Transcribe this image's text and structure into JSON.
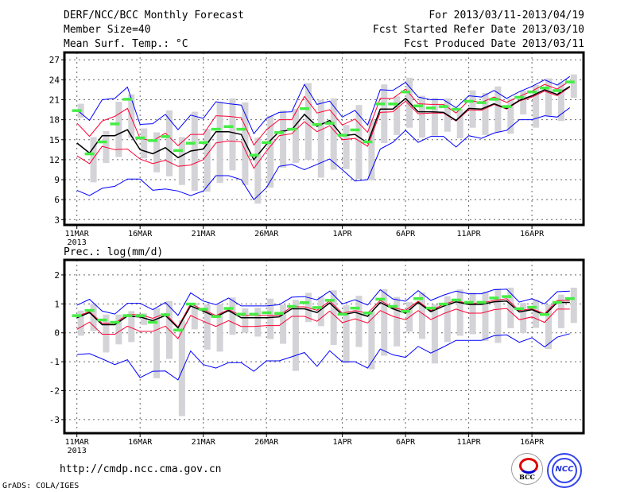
{
  "header": {
    "title": "DERF/NCC/BCC Monthly Forecast",
    "member_size": "Member Size=40",
    "variable": "Mean Surf. Temp.: °C",
    "period": "For 2013/03/11-2013/04/19",
    "started": "Fcst Started Refer Date 2013/03/10",
    "produced": "Fcst Produced Date 2013/03/11"
  },
  "footer": {
    "url": "http://cmdp.ncc.cma.gov.cn",
    "grads": "GrADS: COLA/IGES",
    "logo_bcc": "BCC",
    "logo_ncc": "NCC"
  },
  "colors": {
    "max_min": "#0000ff",
    "spread": "#ff0033",
    "mean": "#000000",
    "obs": "#44ee44",
    "range": "#d3d3d8"
  },
  "chart_data": [
    {
      "type": "line",
      "title": "Mean Surf. Temp.: °C",
      "ylim": [
        2.2,
        28.1
      ],
      "yticks": [
        3,
        6,
        9,
        12,
        15,
        18,
        21,
        24,
        27
      ],
      "grid": true,
      "xticks": [
        {
          "day": 0,
          "label": "11MAR",
          "sub": "2013"
        },
        {
          "day": 5,
          "label": "16MAR"
        },
        {
          "day": 10,
          "label": "21MAR"
        },
        {
          "day": 15,
          "label": "26MAR"
        },
        {
          "day": 21,
          "label": "1APR"
        },
        {
          "day": 26,
          "label": "6APR"
        },
        {
          "day": 31,
          "label": "11APR"
        },
        {
          "day": 36,
          "label": "16APR"
        }
      ],
      "series": [
        {
          "name": "range",
          "kind": "bar",
          "min": [
            18.3,
            8.6,
            11.5,
            12.4,
            15.3,
            12.2,
            10.1,
            9.5,
            8.2,
            7.3,
            7.2,
            8.5,
            10.4,
            8.2,
            5.4,
            7.8,
            10.8,
            11.5,
            12.0,
            9.3,
            10.5,
            10.6,
            9.1,
            8.9,
            14.5,
            15.7,
            16.8,
            15.3,
            15.6,
            16.2,
            15.2,
            16.8,
            15.7,
            16.1,
            15.9,
            18.8,
            16.8,
            18.6,
            17.8,
            21.3
          ],
          "max": [
            20.4,
            15.4,
            16.3,
            20.7,
            21.8,
            16.7,
            16.1,
            19.4,
            15.4,
            19.2,
            16.6,
            20.7,
            21.2,
            20.6,
            15.3,
            18.6,
            19.4,
            19.6,
            23.5,
            21.0,
            21.2,
            17.2,
            20.2,
            18.0,
            23.3,
            21.5,
            24.3,
            21.6,
            21.3,
            21.2,
            19.6,
            22.4,
            22.0,
            23.0,
            21.2,
            22.4,
            23.2,
            24.2,
            23.6,
            24.8
          ]
        },
        {
          "name": "upper-blue",
          "color": "#0000ff",
          "values": [
            19.5,
            17.9,
            21.0,
            21.2,
            22.9,
            17.3,
            17.4,
            18.8,
            16.5,
            18.7,
            18.2,
            20.7,
            20.4,
            20.2,
            15.9,
            18.2,
            19.1,
            19.2,
            23.3,
            20.3,
            20.8,
            18.4,
            19.4,
            17.2,
            22.5,
            22.4,
            23.6,
            21.4,
            21.0,
            21.0,
            19.8,
            21.6,
            21.4,
            22.4,
            21.2,
            22.2,
            23.0,
            24.0,
            23.2,
            24.5
          ]
        },
        {
          "name": "lower-blue",
          "color": "#0000ff",
          "values": [
            7.4,
            6.6,
            7.7,
            8.0,
            9.1,
            9.1,
            7.4,
            7.6,
            7.3,
            6.6,
            7.3,
            9.6,
            9.6,
            9.0,
            6.0,
            7.8,
            11.0,
            11.3,
            10.5,
            11.3,
            12.1,
            10.5,
            8.8,
            9.0,
            13.6,
            14.6,
            16.4,
            14.6,
            15.5,
            15.5,
            13.9,
            15.6,
            15.2,
            16.0,
            16.4,
            18.0,
            18.0,
            18.6,
            18.4,
            19.8
          ]
        },
        {
          "name": "upper-red",
          "color": "#ff0033",
          "values": [
            17.5,
            15.5,
            17.8,
            18.5,
            19.7,
            15.2,
            14.8,
            16.0,
            14.1,
            15.8,
            15.8,
            18.6,
            18.5,
            18.3,
            14.2,
            16.5,
            18.0,
            18.0,
            21.5,
            19.0,
            19.5,
            17.2,
            18.1,
            16.1,
            21.2,
            21.2,
            22.6,
            20.4,
            20.3,
            20.3,
            19.0,
            20.9,
            20.6,
            21.4,
            20.6,
            21.5,
            22.3,
            23.3,
            22.6,
            23.8
          ]
        },
        {
          "name": "lower-red",
          "color": "#ff0033",
          "values": [
            12.6,
            11.4,
            14.0,
            13.5,
            13.6,
            12.1,
            11.4,
            11.9,
            11.0,
            11.2,
            12.0,
            14.5,
            14.8,
            14.7,
            10.7,
            13.3,
            15.6,
            15.9,
            17.7,
            16.2,
            17.1,
            15.0,
            15.2,
            14.0,
            19.1,
            19.2,
            20.8,
            18.9,
            19.0,
            19.0,
            17.8,
            19.5,
            19.4,
            20.3,
            19.6,
            20.8,
            21.4,
            22.3,
            21.6,
            22.9
          ]
        },
        {
          "name": "mean",
          "color": "#000000",
          "values": [
            14.5,
            13.0,
            15.6,
            15.6,
            16.5,
            13.5,
            12.9,
            13.8,
            12.3,
            13.3,
            13.6,
            16.2,
            16.2,
            15.8,
            12.0,
            14.3,
            16.2,
            16.5,
            18.8,
            17.0,
            17.9,
            15.6,
            15.8,
            14.5,
            19.6,
            19.6,
            21.2,
            19.2,
            19.2,
            19.1,
            17.9,
            19.7,
            19.6,
            20.4,
            19.7,
            20.9,
            21.6,
            22.5,
            21.8,
            23.0
          ]
        },
        {
          "name": "obs",
          "kind": "dash",
          "color": "#44ee44",
          "values": [
            19.4,
            12.9,
            14.7,
            17.4,
            21.1,
            15.3,
            14.9,
            15.5,
            13.4,
            14.5,
            14.6,
            16.6,
            17.0,
            16.6,
            12.7,
            14.6,
            16.1,
            16.6,
            19.7,
            17.3,
            17.5,
            15.7,
            16.5,
            14.7,
            20.4,
            20.4,
            22.2,
            20.1,
            19.8,
            20.0,
            19.6,
            20.8,
            20.6,
            21.1,
            20.0,
            21.4,
            22.2,
            22.8,
            22.4,
            23.7
          ]
        }
      ]
    },
    {
      "type": "line",
      "title": "Prec.: log(mm/d)",
      "ylim": [
        -3.47,
        2.52
      ],
      "yticks": [
        -3,
        -2,
        -1,
        0,
        1,
        2
      ],
      "grid": true,
      "xticks": [
        {
          "day": 0,
          "label": "11MAR",
          "sub": "2013"
        },
        {
          "day": 5,
          "label": "16MAR"
        },
        {
          "day": 10,
          "label": "21MAR"
        },
        {
          "day": 15,
          "label": "26MAR"
        },
        {
          "day": 21,
          "label": "1APR"
        },
        {
          "day": 26,
          "label": "6APR"
        },
        {
          "day": 31,
          "label": "11APR"
        },
        {
          "day": 36,
          "label": "16APR"
        }
      ],
      "series": [
        {
          "name": "range",
          "kind": "bar",
          "min": [
            -0.1,
            0.06,
            -0.68,
            -0.4,
            -0.32,
            0.27,
            -1.57,
            -0.9,
            -2.88,
            0.12,
            -0.58,
            -0.65,
            -0.07,
            0,
            -0.13,
            -0.22,
            -0.38,
            -1.32,
            0.37,
            0.23,
            -0.42,
            -1.05,
            -0.49,
            -1.26,
            -0.79,
            -0.47,
            0.04,
            -0.21,
            -1.06,
            -0.32,
            -0.1,
            -0.05,
            -0.28,
            -0.35,
            0.16,
            -0.01,
            0.17,
            -0.56,
            0.16,
            0.34
          ],
          "max": [
            0.77,
            1.02,
            0.63,
            0.63,
            0.75,
            0.67,
            0.85,
            1.1,
            0.43,
            1.03,
            0.98,
            1.0,
            1.22,
            0.85,
            0.87,
            1.18,
            0.97,
            1.14,
            1.38,
            1.25,
            1.47,
            0.95,
            1.28,
            0.75,
            1.51,
            1.24,
            1.06,
            1.39,
            0.98,
            1.26,
            1.5,
            1.39,
            1.42,
            1.53,
            1.56,
            1.03,
            1.14,
            0.98,
            1.32,
            1.56
          ]
        },
        {
          "name": "upper-blue",
          "color": "#0000ff",
          "values": [
            0.95,
            1.16,
            0.75,
            0.65,
            1.02,
            1.02,
            0.8,
            1.05,
            0.6,
            1.38,
            1.1,
            0.97,
            1.2,
            0.93,
            0.93,
            0.93,
            0.97,
            1.23,
            1.25,
            1.14,
            1.44,
            1.0,
            1.14,
            0.96,
            1.49,
            1.17,
            1.09,
            1.46,
            1.12,
            1.3,
            1.44,
            1.35,
            1.35,
            1.49,
            1.51,
            1.06,
            1.18,
            1.0,
            1.42,
            1.44
          ]
        },
        {
          "name": "lower-blue",
          "color": "#0000ff",
          "values": [
            -0.75,
            -0.72,
            -0.9,
            -1.1,
            -0.93,
            -1.55,
            -1.33,
            -1.32,
            -1.63,
            -0.63,
            -1.1,
            -1.22,
            -1.03,
            -1.03,
            -1.33,
            -0.97,
            -0.97,
            -0.83,
            -0.68,
            -1.16,
            -0.62,
            -1.0,
            -1.0,
            -1.22,
            -0.56,
            -0.76,
            -0.85,
            -0.47,
            -0.7,
            -0.49,
            -0.26,
            -0.26,
            -0.26,
            -0.1,
            -0.07,
            -0.33,
            -0.17,
            -0.49,
            -0.15,
            -0.03
          ]
        },
        {
          "name": "upper-red",
          "color": "#ff0033",
          "values": [
            0.57,
            0.73,
            0.33,
            0.33,
            0.63,
            0.63,
            0.5,
            0.67,
            0.2,
            1.0,
            0.8,
            0.6,
            0.8,
            0.6,
            0.6,
            0.6,
            0.6,
            0.9,
            0.9,
            0.78,
            1.1,
            0.68,
            0.77,
            0.68,
            1.12,
            0.87,
            0.78,
            1.09,
            0.77,
            0.98,
            1.12,
            1.0,
            1.03,
            1.12,
            1.18,
            0.77,
            0.83,
            0.66,
            1.12,
            1.12
          ]
        },
        {
          "name": "lower-red",
          "color": "#ff0033",
          "values": [
            0.12,
            0.37,
            -0.05,
            -0.05,
            0.23,
            0.05,
            0.05,
            0.23,
            -0.2,
            0.6,
            0.4,
            0.22,
            0.42,
            0.22,
            0.22,
            0.25,
            0.25,
            0.57,
            0.57,
            0.4,
            0.75,
            0.35,
            0.48,
            0.34,
            0.77,
            0.57,
            0.45,
            0.77,
            0.46,
            0.66,
            0.82,
            0.68,
            0.68,
            0.8,
            0.84,
            0.45,
            0.55,
            0.36,
            0.82,
            0.82
          ]
        },
        {
          "name": "mean",
          "color": "#000000",
          "values": [
            0.52,
            0.7,
            0.28,
            0.28,
            0.58,
            0.55,
            0.42,
            0.6,
            0.17,
            0.93,
            0.75,
            0.55,
            0.77,
            0.52,
            0.52,
            0.52,
            0.55,
            0.83,
            0.83,
            0.7,
            1.03,
            0.62,
            0.71,
            0.57,
            1.05,
            0.83,
            0.68,
            1.05,
            0.73,
            0.92,
            1.07,
            0.98,
            0.98,
            1.07,
            1.1,
            0.72,
            0.8,
            0.61,
            1.05,
            1.05
          ]
        },
        {
          "name": "obs",
          "kind": "dash",
          "color": "#44ee44",
          "values": [
            0.6,
            0.78,
            0.45,
            0.37,
            0.6,
            0.6,
            0.37,
            0.63,
            0.1,
            1.0,
            0.82,
            0.57,
            0.85,
            0.65,
            0.65,
            0.7,
            0.68,
            0.92,
            1.05,
            0.88,
            1.13,
            0.65,
            0.86,
            0.69,
            1.17,
            0.92,
            0.75,
            1.19,
            0.86,
            1.0,
            1.14,
            1.06,
            1.06,
            1.21,
            1.26,
            0.84,
            0.89,
            0.64,
            1.06,
            1.19
          ]
        }
      ]
    }
  ]
}
